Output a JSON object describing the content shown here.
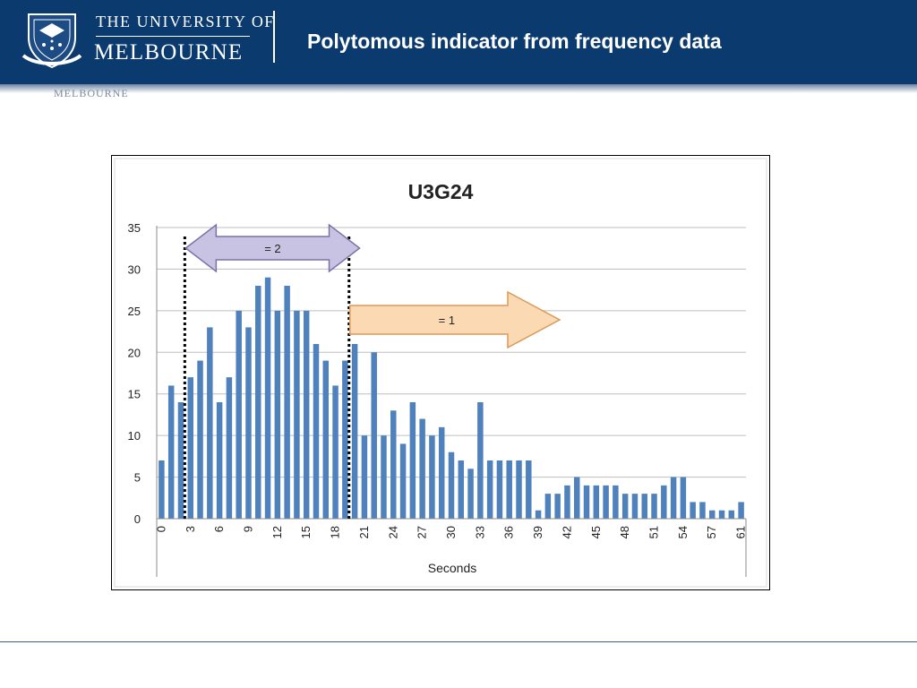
{
  "header": {
    "university_line1": "THE UNIVERSITY OF",
    "university_line2": "MELBOURNE",
    "page_title": "Polytomous indicator from frequency data",
    "ghost_text": "MELBOURNE"
  },
  "colors": {
    "header_bg": "#0b3a6e",
    "bar": "#4f81bd",
    "gridline": "#bfbfbf",
    "arrow_left_fill": "#c9c3e3",
    "arrow_right_fill": "#fbd9b3"
  },
  "icons": [
    "university-crest-icon",
    "double-arrow-icon",
    "right-arrow-icon"
  ],
  "chart_data": {
    "type": "bar",
    "title": "U3G24",
    "xlabel": "Seconds",
    "ylabel": "",
    "ylim": [
      0,
      35
    ],
    "yticks": [
      0,
      5,
      10,
      15,
      20,
      25,
      30,
      35
    ],
    "xtick_labels": [
      "0",
      "3",
      "6",
      "9",
      "12",
      "15",
      "18",
      "21",
      "24",
      "27",
      "30",
      "33",
      "36",
      "39",
      "42",
      "45",
      "48",
      "51",
      "54",
      "57",
      "61"
    ],
    "grid": true,
    "x": [
      0,
      1,
      2,
      3,
      4,
      5,
      6,
      7,
      8,
      9,
      10,
      11,
      12,
      13,
      14,
      15,
      16,
      17,
      18,
      19,
      20,
      21,
      22,
      23,
      24,
      25,
      26,
      27,
      28,
      29,
      30,
      31,
      32,
      33,
      34,
      35,
      36,
      37,
      38,
      39,
      40,
      41,
      42,
      43,
      44,
      45,
      46,
      47,
      48,
      49,
      50,
      51,
      52,
      53,
      54,
      55,
      56,
      57,
      58,
      59,
      61
    ],
    "values": [
      7,
      16,
      14,
      17,
      19,
      23,
      14,
      17,
      25,
      23,
      28,
      29,
      25,
      28,
      25,
      25,
      21,
      19,
      16,
      19,
      21,
      10,
      20,
      10,
      13,
      9,
      14,
      12,
      10,
      11,
      8,
      7,
      6,
      14,
      7,
      7,
      7,
      7,
      7,
      1,
      3,
      3,
      4,
      5,
      4,
      4,
      4,
      4,
      3,
      3,
      3,
      3,
      4,
      5,
      5,
      2,
      2,
      1,
      1,
      1,
      2
    ],
    "annotations": [
      {
        "label": "= 2",
        "kind": "double-arrow",
        "from_x": 3,
        "to_x": 20
      },
      {
        "label": "= 1",
        "kind": "right-arrow",
        "from_x": 20
      }
    ],
    "markers": [
      {
        "kind": "dotted-vertical-line",
        "x": 3
      },
      {
        "kind": "dotted-vertical-line",
        "x": 20
      }
    ]
  }
}
